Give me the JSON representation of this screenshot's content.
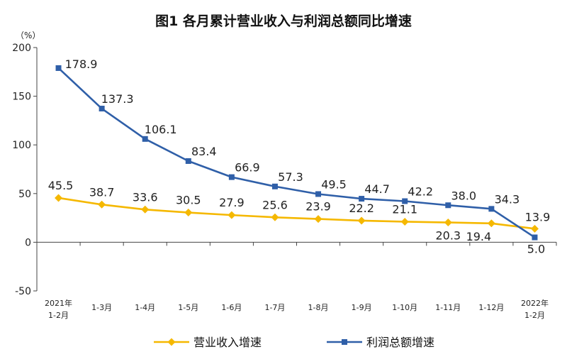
{
  "chart_data": {
    "type": "line",
    "title": "图1  各月累计营业收入与利润总额同比增速",
    "y_unit": "（%）",
    "ylim": [
      -50,
      200
    ],
    "yticks": [
      -50,
      0,
      50,
      100,
      150,
      200
    ],
    "categories": [
      [
        "2021年",
        "1-2月"
      ],
      [
        "1-3月"
      ],
      [
        "1-4月"
      ],
      [
        "1-5月"
      ],
      [
        "1-6月"
      ],
      [
        "1-7月"
      ],
      [
        "1-8月"
      ],
      [
        "1-9月"
      ],
      [
        "1-10月"
      ],
      [
        "1-11月"
      ],
      [
        "1-12月"
      ],
      [
        "2022年",
        "1-2月"
      ]
    ],
    "series": [
      {
        "name": "营业收入增速",
        "color": "#f5b800",
        "marker": "diamond",
        "values": [
          45.5,
          38.7,
          33.6,
          30.5,
          27.9,
          25.6,
          23.9,
          22.2,
          21.1,
          20.3,
          19.4,
          13.9
        ],
        "labels": [
          "45.5",
          "38.7",
          "33.6",
          "30.5",
          "27.9",
          "25.6",
          "23.9",
          "22.2",
          "21.1",
          "20.3",
          "19.4",
          "13.9"
        ]
      },
      {
        "name": "利润总额增速",
        "color": "#2f5fa8",
        "marker": "square",
        "values": [
          178.9,
          137.3,
          106.1,
          83.4,
          66.9,
          57.3,
          49.5,
          44.7,
          42.2,
          38.0,
          34.3,
          5.0
        ],
        "labels": [
          "178.9",
          "137.3",
          "106.1",
          "83.4",
          "66.9",
          "57.3",
          "49.5",
          "44.7",
          "42.2",
          "38.0",
          "34.3",
          "5.0"
        ]
      }
    ],
    "legend_position": "bottom",
    "grid": false
  }
}
